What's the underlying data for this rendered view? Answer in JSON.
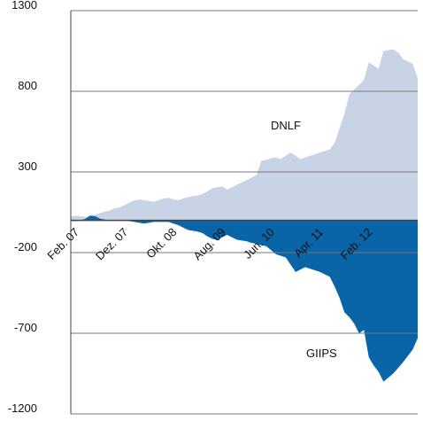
{
  "chart_data": {
    "type": "area",
    "categories": [
      "Feb. 07",
      null,
      null,
      null,
      null,
      null,
      null,
      null,
      null,
      null,
      "Dez. 07",
      null,
      null,
      null,
      null,
      null,
      null,
      null,
      null,
      null,
      "Okt. 08",
      null,
      null,
      null,
      null,
      null,
      null,
      null,
      null,
      null,
      "Aug. 09",
      null,
      null,
      null,
      null,
      null,
      null,
      null,
      null,
      null,
      "Jun. 10",
      null,
      null,
      null,
      null,
      null,
      null,
      null,
      null,
      null,
      "Apr. 11",
      null,
      null,
      null,
      null,
      null,
      null,
      null,
      null,
      null,
      "Feb. 12",
      null,
      null,
      null,
      null,
      null,
      null,
      null,
      null,
      null,
      null,
      null
    ],
    "series": [
      {
        "name": "DNLF",
        "color": "#c9d3e6",
        "values": [
          25,
          28,
          25,
          20,
          25,
          35,
          45,
          55,
          60,
          75,
          80,
          95,
          110,
          125,
          130,
          125,
          120,
          115,
          125,
          135,
          140,
          130,
          125,
          135,
          145,
          150,
          155,
          165,
          180,
          200,
          205,
          210,
          190,
          205,
          220,
          235,
          250,
          265,
          280,
          370,
          375,
          385,
          390,
          380,
          400,
          420,
          400,
          380,
          390,
          400,
          410,
          420,
          430,
          440,
          480,
          570,
          660,
          780,
          810,
          840,
          870,
          980,
          960,
          940,
          1050,
          1055,
          1060,
          1040,
          1000,
          985,
          970,
          880
        ]
      },
      {
        "name": "GIIPS",
        "color": "#0a64a8",
        "values": [
          -5,
          -5,
          0,
          10,
          30,
          25,
          10,
          5,
          0,
          0,
          0,
          0,
          -5,
          -10,
          -15,
          -20,
          -15,
          -10,
          -10,
          -10,
          -10,
          -20,
          -30,
          -45,
          -60,
          -65,
          -70,
          -80,
          -100,
          -115,
          -120,
          -105,
          -90,
          -105,
          -120,
          -125,
          -130,
          -140,
          -145,
          -155,
          -160,
          -185,
          -210,
          -220,
          -230,
          -275,
          -320,
          -305,
          -290,
          -300,
          -310,
          -320,
          -335,
          -350,
          -410,
          -480,
          -570,
          -600,
          -640,
          -700,
          -680,
          -850,
          -900,
          -940,
          -1000,
          -975,
          -950,
          -915,
          -880,
          -840,
          -800,
          -730
        ]
      }
    ],
    "ylim": [
      -1200,
      1300
    ],
    "yticks": [
      1300,
      800,
      300,
      -200,
      -700,
      -1200
    ],
    "grid": true
  }
}
